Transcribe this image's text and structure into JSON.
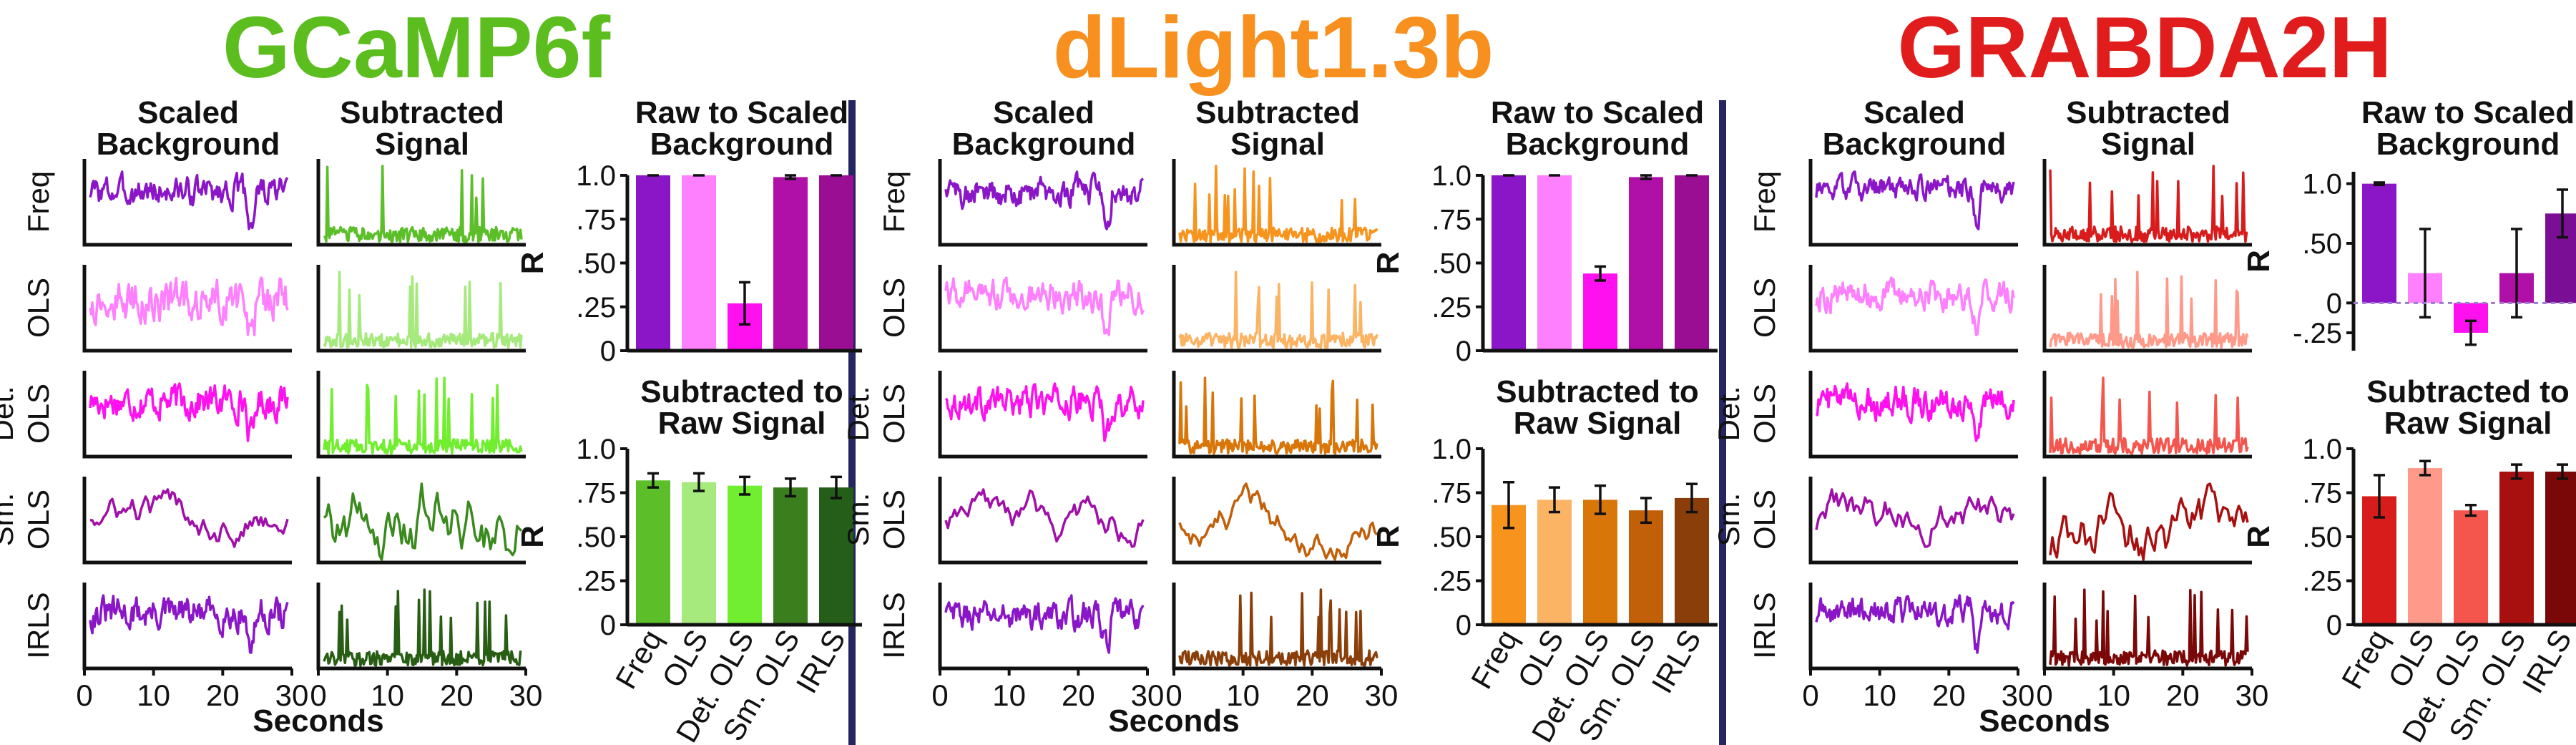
{
  "panels": [
    {
      "title": "GCaMP6f",
      "title_color": "#5bbd1e",
      "traces": {
        "col1_title": [
          "Scaled",
          "Background"
        ],
        "col2_title": [
          "Subtracted",
          "Signal"
        ],
        "row_labels": [
          [
            "Freq"
          ],
          [
            "OLS"
          ],
          [
            "Det.",
            "OLS"
          ],
          [
            "Sm.",
            "OLS"
          ],
          [
            "IRLS"
          ]
        ],
        "bg_colors": [
          "#8a16c8",
          "#ff80ff",
          "#ff10ee",
          "#a010a8",
          "#8a16c8"
        ],
        "sig_colors": [
          "#5cbf2a",
          "#a6ea7e",
          "#72ee30",
          "#3a8a1e",
          "#285e14"
        ],
        "xticks": [
          "0",
          "10",
          "20",
          "30"
        ],
        "xlabel": "Seconds"
      },
      "bar1": {
        "title": [
          "Raw to Scaled",
          "Background"
        ],
        "ylabel": "R",
        "ytick_labels": [
          "1.0",
          ".75",
          ".50",
          ".25",
          "0"
        ],
        "colors": [
          "#8a16c8",
          "#ff80ff",
          "#ff10ee",
          "#b010a8",
          "#9a0e94"
        ]
      },
      "bar2": {
        "title": [
          "Subtracted to",
          "Raw Signal"
        ],
        "ylabel": "R",
        "ytick_labels": [
          "1.0",
          ".75",
          ".50",
          ".25",
          "0"
        ],
        "colors": [
          "#5cbf2a",
          "#a6ea7e",
          "#72ee30",
          "#3a7e1e",
          "#245e18"
        ]
      }
    },
    {
      "title": "dLight1.3b",
      "title_color": "#f7901e",
      "traces": {
        "col1_title": [
          "Scaled",
          "Background"
        ],
        "col2_title": [
          "Subtracted",
          "Signal"
        ],
        "row_labels": [
          [
            "Freq"
          ],
          [
            "OLS"
          ],
          [
            "Det.",
            "OLS"
          ],
          [
            "Sm.",
            "OLS"
          ],
          [
            "IRLS"
          ]
        ],
        "bg_colors": [
          "#8a16c8",
          "#ff80ff",
          "#ff10ee",
          "#a010a8",
          "#8a16c8"
        ],
        "sig_colors": [
          "#f7941d",
          "#fbb464",
          "#d9760a",
          "#c2600a",
          "#8a3f0a"
        ],
        "xticks": [
          "0",
          "10",
          "20",
          "30"
        ],
        "xlabel": "Seconds"
      },
      "bar1": {
        "title": [
          "Raw to Scaled",
          "Background"
        ],
        "ylabel": "R",
        "ytick_labels": [
          "1.0",
          ".75",
          ".50",
          ".25",
          "0"
        ],
        "colors": [
          "#8a16c8",
          "#ff80ff",
          "#ff10ee",
          "#b010a8",
          "#9a0e94"
        ]
      },
      "bar2": {
        "title": [
          "Subtracted to",
          "Raw Signal"
        ],
        "ylabel": "R",
        "ytick_labels": [
          "1.0",
          ".75",
          ".50",
          ".25",
          "0"
        ],
        "colors": [
          "#f7941d",
          "#fbb464",
          "#d9760a",
          "#c2600a",
          "#8a3f0a"
        ]
      }
    },
    {
      "title": "GRABDA2H",
      "title_color": "#e01c1c",
      "traces": {
        "col1_title": [
          "Scaled",
          "Background"
        ],
        "col2_title": [
          "Subtracted",
          "Signal"
        ],
        "row_labels": [
          [
            "Freq"
          ],
          [
            "OLS"
          ],
          [
            "Det.",
            "OLS"
          ],
          [
            "Sm.",
            "OLS"
          ],
          [
            "IRLS"
          ]
        ],
        "bg_colors": [
          "#8a16c8",
          "#ff80ff",
          "#ff10ee",
          "#a010a8",
          "#8a16c8"
        ],
        "sig_colors": [
          "#d81c1c",
          "#ff9a8a",
          "#f4564e",
          "#a81010",
          "#7a0808"
        ],
        "xticks": [
          "0",
          "10",
          "20",
          "30"
        ],
        "xlabel": "Seconds"
      },
      "bar1": {
        "title": [
          "Raw to Scaled",
          "Background"
        ],
        "ylabel": "R",
        "ytick_labels": [
          "1.0",
          ".50",
          "0",
          "-.25"
        ],
        "colors": [
          "#8a16c8",
          "#ff80ff",
          "#ff10ee",
          "#b010a8",
          "#7a0e94"
        ]
      },
      "bar2": {
        "title": [
          "Subtracted to",
          "Raw Signal"
        ],
        "ylabel": "R",
        "ytick_labels": [
          "1.0",
          ".75",
          ".50",
          ".25",
          "0"
        ],
        "colors": [
          "#d81c1c",
          "#ff9a8a",
          "#f4564e",
          "#a81010",
          "#7a0808"
        ]
      }
    }
  ],
  "chart_data": [
    {
      "type": "bar",
      "title": "Raw to Scaled Background",
      "group": "GCaMP6f",
      "categories": [
        "Freq",
        "OLS",
        "Det. OLS",
        "Sm. OLS",
        "IRLS"
      ],
      "values": [
        1.0,
        1.0,
        0.27,
        0.99,
        1.0
      ],
      "errors": [
        0.005,
        0.005,
        0.12,
        0.01,
        0.005
      ],
      "ylabel": "R",
      "ylim": [
        0,
        1.0
      ],
      "yticks": [
        0,
        0.25,
        0.5,
        0.75,
        1.0
      ]
    },
    {
      "type": "bar",
      "title": "Subtracted to Raw Signal",
      "group": "GCaMP6f",
      "categories": [
        "Freq",
        "OLS",
        "Det. OLS",
        "Sm. OLS",
        "IRLS"
      ],
      "values": [
        0.82,
        0.81,
        0.79,
        0.78,
        0.78
      ],
      "errors": [
        0.04,
        0.05,
        0.05,
        0.05,
        0.06
      ],
      "ylabel": "R",
      "ylim": [
        0,
        1.0
      ],
      "yticks": [
        0,
        0.25,
        0.5,
        0.75,
        1.0
      ]
    },
    {
      "type": "bar",
      "title": "Raw to Scaled Background",
      "group": "dLight1.3b",
      "categories": [
        "Freq",
        "OLS",
        "Det. OLS",
        "Sm. OLS",
        "IRLS"
      ],
      "values": [
        1.0,
        1.0,
        0.44,
        0.99,
        1.0
      ],
      "errors": [
        0.005,
        0.005,
        0.04,
        0.01,
        0.005
      ],
      "ylabel": "R",
      "ylim": [
        0,
        1.0
      ],
      "yticks": [
        0,
        0.25,
        0.5,
        0.75,
        1.0
      ]
    },
    {
      "type": "bar",
      "title": "Subtracted to Raw Signal",
      "group": "dLight1.3b",
      "categories": [
        "Freq",
        "OLS",
        "Det. OLS",
        "Sm. OLS",
        "IRLS"
      ],
      "values": [
        0.68,
        0.71,
        0.71,
        0.65,
        0.72
      ],
      "errors": [
        0.13,
        0.07,
        0.08,
        0.07,
        0.08
      ],
      "ylabel": "R",
      "ylim": [
        0,
        1.0
      ],
      "yticks": [
        0,
        0.25,
        0.5,
        0.75,
        1.0
      ]
    },
    {
      "type": "bar",
      "title": "Raw to Scaled Background",
      "group": "GRABDA2H",
      "categories": [
        "Freq",
        "OLS",
        "Det. OLS",
        "Sm. OLS",
        "IRLS"
      ],
      "values": [
        1.0,
        0.25,
        -0.25,
        0.25,
        0.75
      ],
      "errors": [
        0.01,
        0.37,
        0.1,
        0.37,
        0.2
      ],
      "ylabel": "R",
      "ylim": [
        -0.4,
        1.1
      ],
      "yticks": [
        -0.25,
        0,
        0.5,
        1.0
      ]
    },
    {
      "type": "bar",
      "title": "Subtracted to Raw Signal",
      "group": "GRABDA2H",
      "categories": [
        "Freq",
        "OLS",
        "Det. OLS",
        "Sm. OLS",
        "IRLS"
      ],
      "values": [
        0.73,
        0.89,
        0.65,
        0.87,
        0.87
      ],
      "errors": [
        0.12,
        0.04,
        0.03,
        0.04,
        0.04
      ],
      "ylabel": "R",
      "ylim": [
        0,
        1.0
      ],
      "yticks": [
        0,
        0.25,
        0.5,
        0.75,
        1.0
      ]
    }
  ],
  "separator_color": "#252560"
}
